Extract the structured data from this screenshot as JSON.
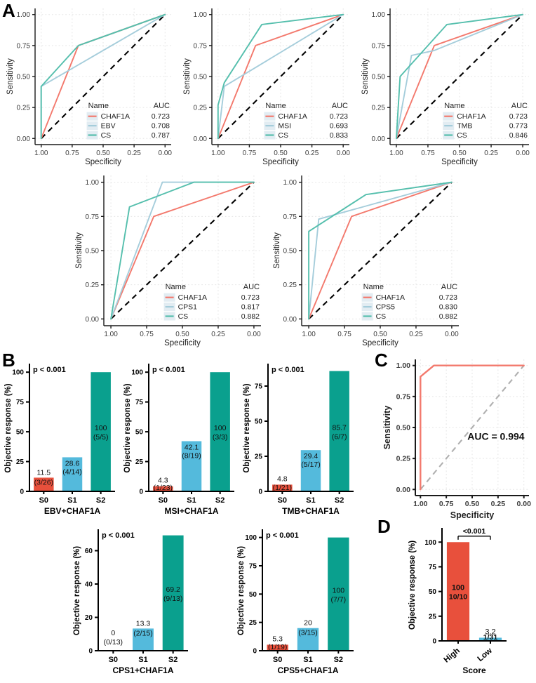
{
  "panels": {
    "a": "A",
    "b": "B",
    "c": "C",
    "d": "D"
  },
  "colors": {
    "roc_chaf1a": "#F3796D",
    "roc_blue": "#A5CDDB",
    "roc_teal": "#55BFAD",
    "legend_key_bg": "#E2ECF2",
    "diagonal_black": "#000000",
    "diagonal_gray": "#B0B0B0",
    "grid": "#E5E5E5",
    "bar_red": "#E8503C",
    "bar_blue": "#54BADC",
    "bar_teal": "#0AA08E",
    "axis_line": "#1A1A1A",
    "axis_text": "#3D3D3D",
    "label_text": "#111111"
  },
  "chart_data": [
    {
      "id": "roc-chaf1a-ebv",
      "type": "line",
      "panel": "A",
      "xlabel": "Specificity",
      "ylabel": "Sensitivity",
      "x_ticks": [
        "1.00",
        "0.75",
        "0.50",
        "0.25",
        "0.00"
      ],
      "y_ticks": [
        "0.00",
        "0.25",
        "0.50",
        "0.75",
        "1.00"
      ],
      "x_reversed": true,
      "diagonal": true,
      "grid": true,
      "legend": {
        "headers": [
          "Name",
          "AUC"
        ],
        "entries": [
          {
            "name": "CHAF1A",
            "auc": "0.723",
            "color": "#F3796D"
          },
          {
            "name": "EBV",
            "auc": "0.708",
            "color": "#A5CDDB"
          },
          {
            "name": "CS",
            "auc": "0.787",
            "color": "#55BFAD"
          }
        ]
      },
      "series": [
        {
          "name": "CHAF1A",
          "color": "#F3796D",
          "points": [
            [
              1,
              0
            ],
            [
              0.7,
              0.75
            ],
            [
              0,
              1
            ]
          ]
        },
        {
          "name": "EBV",
          "color": "#A5CDDB",
          "points": [
            [
              1,
              0
            ],
            [
              1,
              0.42
            ],
            [
              0,
              1
            ]
          ]
        },
        {
          "name": "CS",
          "color": "#55BFAD",
          "points": [
            [
              1,
              0
            ],
            [
              1,
              0.42
            ],
            [
              0.7,
              0.75
            ],
            [
              0,
              1
            ]
          ]
        }
      ]
    },
    {
      "id": "roc-chaf1a-msi",
      "type": "line",
      "panel": "A",
      "xlabel": "Specificity",
      "ylabel": "Sensitivity",
      "x_ticks": [
        "1.00",
        "0.75",
        "0.50",
        "0.25",
        "0.00"
      ],
      "y_ticks": [
        "0.00",
        "0.25",
        "0.50",
        "0.75",
        "1.00"
      ],
      "x_reversed": true,
      "diagonal": true,
      "grid": true,
      "legend": {
        "headers": [
          "Name",
          "AUC"
        ],
        "entries": [
          {
            "name": "CHAF1A",
            "auc": "0.723",
            "color": "#F3796D"
          },
          {
            "name": "MSI",
            "auc": "0.693",
            "color": "#A5CDDB"
          },
          {
            "name": "CS",
            "auc": "0.833",
            "color": "#55BFAD"
          }
        ]
      },
      "series": [
        {
          "name": "CHAF1A",
          "color": "#F3796D",
          "points": [
            [
              1,
              0
            ],
            [
              0.7,
              0.75
            ],
            [
              0,
              1
            ]
          ]
        },
        {
          "name": "MSI",
          "color": "#A5CDDB",
          "points": [
            [
              1,
              0
            ],
            [
              0.95,
              0.42
            ],
            [
              0,
              1
            ]
          ]
        },
        {
          "name": "CS",
          "color": "#55BFAD",
          "points": [
            [
              1,
              0
            ],
            [
              1,
              0.27
            ],
            [
              0.95,
              0.45
            ],
            [
              0.65,
              0.92
            ],
            [
              0,
              1
            ]
          ]
        }
      ]
    },
    {
      "id": "roc-chaf1a-tmb",
      "type": "line",
      "panel": "A",
      "xlabel": "Specificity",
      "ylabel": "Sensitivity",
      "x_ticks": [
        "1.00",
        "0.75",
        "0.50",
        "0.25",
        "0.00"
      ],
      "y_ticks": [
        "0.00",
        "0.25",
        "0.50",
        "0.75",
        "1.00"
      ],
      "x_reversed": true,
      "diagonal": true,
      "grid": true,
      "legend": {
        "headers": [
          "Name",
          "AUC"
        ],
        "entries": [
          {
            "name": "CHAF1A",
            "auc": "0.723",
            "color": "#F3796D"
          },
          {
            "name": "TMB",
            "auc": "0.773",
            "color": "#A5CDDB"
          },
          {
            "name": "CS",
            "auc": "0.846",
            "color": "#55BFAD"
          }
        ]
      },
      "series": [
        {
          "name": "CHAF1A",
          "color": "#F3796D",
          "points": [
            [
              1,
              0
            ],
            [
              0.7,
              0.75
            ],
            [
              0,
              1
            ]
          ]
        },
        {
          "name": "TMB",
          "color": "#A5CDDB",
          "points": [
            [
              1,
              0
            ],
            [
              0.88,
              0.67
            ],
            [
              0.7,
              0.71
            ],
            [
              0,
              1
            ]
          ]
        },
        {
          "name": "CS",
          "color": "#55BFAD",
          "points": [
            [
              1,
              0
            ],
            [
              0.97,
              0.5
            ],
            [
              0.6,
              0.92
            ],
            [
              0,
              1
            ]
          ]
        }
      ]
    },
    {
      "id": "roc-chaf1a-cps1",
      "type": "line",
      "panel": "A",
      "xlabel": "Specificity",
      "ylabel": "Sensitivity",
      "x_ticks": [
        "1.00",
        "0.75",
        "0.50",
        "0.25",
        "0.00"
      ],
      "y_ticks": [
        "0.00",
        "0.25",
        "0.50",
        "0.75",
        "1.00"
      ],
      "x_reversed": true,
      "diagonal": true,
      "grid": true,
      "legend": {
        "headers": [
          "Name",
          "AUC"
        ],
        "entries": [
          {
            "name": "CHAF1A",
            "auc": "0.723",
            "color": "#F3796D"
          },
          {
            "name": "CPS1",
            "auc": "0.817",
            "color": "#A5CDDB"
          },
          {
            "name": "CS",
            "auc": "0.882",
            "color": "#55BFAD"
          }
        ]
      },
      "series": [
        {
          "name": "CHAF1A",
          "color": "#F3796D",
          "points": [
            [
              1,
              0
            ],
            [
              0.7,
              0.75
            ],
            [
              0,
              1
            ]
          ]
        },
        {
          "name": "CPS1",
          "color": "#A5CDDB",
          "points": [
            [
              1,
              0
            ],
            [
              0.64,
              1
            ],
            [
              0,
              1
            ]
          ]
        },
        {
          "name": "CS",
          "color": "#55BFAD",
          "points": [
            [
              1,
              0
            ],
            [
              0.87,
              0.82
            ],
            [
              0.42,
              1
            ],
            [
              0,
              1
            ]
          ]
        }
      ]
    },
    {
      "id": "roc-chaf1a-cps5",
      "type": "line",
      "panel": "A",
      "xlabel": "Specificity",
      "ylabel": "Sensitivity",
      "x_ticks": [
        "1.00",
        "0.75",
        "0.50",
        "0.25",
        "0.00"
      ],
      "y_ticks": [
        "0.00",
        "0.25",
        "0.50",
        "0.75",
        "1.00"
      ],
      "x_reversed": true,
      "diagonal": true,
      "grid": true,
      "legend": {
        "headers": [
          "Name",
          "AUC"
        ],
        "entries": [
          {
            "name": "CHAF1A",
            "auc": "0.723",
            "color": "#F3796D"
          },
          {
            "name": "CPS5",
            "auc": "0.830",
            "color": "#A5CDDB"
          },
          {
            "name": "CS",
            "auc": "0.882",
            "color": "#55BFAD"
          }
        ]
      },
      "series": [
        {
          "name": "CHAF1A",
          "color": "#F3796D",
          "points": [
            [
              1,
              0
            ],
            [
              0.7,
              0.75
            ],
            [
              0,
              1
            ]
          ]
        },
        {
          "name": "CPS5",
          "color": "#A5CDDB",
          "points": [
            [
              1,
              0
            ],
            [
              0.93,
              0.73
            ],
            [
              0,
              1
            ]
          ]
        },
        {
          "name": "CS",
          "color": "#55BFAD",
          "points": [
            [
              1,
              0
            ],
            [
              1,
              0.64
            ],
            [
              0.6,
              0.91
            ],
            [
              0,
              1
            ]
          ]
        }
      ]
    },
    {
      "id": "roc-signature",
      "type": "line",
      "panel": "C",
      "style": "bold",
      "xlabel": "Specificity",
      "ylabel": "Sensitivity",
      "x_ticks": [
        "1.00",
        "0.75",
        "0.50",
        "0.25",
        "0.00"
      ],
      "y_ticks": [
        "0.00",
        "0.25",
        "0.50",
        "0.75",
        "1.00"
      ],
      "x_reversed": true,
      "diagonal": true,
      "diagonal_color": "#B0B0B0",
      "grid": true,
      "annotation": "AUC = 0.994",
      "series": [
        {
          "name": "signature",
          "color": "#F3796D",
          "points": [
            [
              1,
              0
            ],
            [
              1,
              0.91
            ],
            [
              0.87,
              1
            ],
            [
              0,
              1
            ]
          ]
        }
      ]
    },
    {
      "id": "bar-ebv-chaf1a",
      "type": "bar",
      "panel": "B",
      "p_value": "p < 0.001",
      "ylabel": "Objective response (%)",
      "xlabel": "EBV+CHAF1A",
      "categories": [
        "S0",
        "S1",
        "S2"
      ],
      "values": [
        11.5,
        28.6,
        100
      ],
      "value_labels": [
        "11.5",
        "28.6",
        "100"
      ],
      "fractions": [
        "(3/26)",
        "(4/14)",
        "(5/5)"
      ],
      "colors": [
        "#E8503C",
        "#54BADC",
        "#0AA08E"
      ],
      "y_ticks": [
        0,
        25,
        50,
        75,
        100
      ],
      "ymax": 106
    },
    {
      "id": "bar-msi-chaf1a",
      "type": "bar",
      "panel": "B",
      "p_value": "p < 0.001",
      "ylabel": "Objective response (%)",
      "xlabel": "MSI+CHAF1A",
      "categories": [
        "S0",
        "S1",
        "S2"
      ],
      "values": [
        4.3,
        42.1,
        100
      ],
      "value_labels": [
        "4.3",
        "42.1",
        "100"
      ],
      "fractions": [
        "(1/23)",
        "(8/19)",
        "(3/3)"
      ],
      "colors": [
        "#E8503C",
        "#54BADC",
        "#0AA08E"
      ],
      "y_ticks": [
        0,
        25,
        50,
        75,
        100
      ],
      "ymax": 106
    },
    {
      "id": "bar-tmb-chaf1a",
      "type": "bar",
      "panel": "B",
      "p_value": "p < 0.001",
      "ylabel": "Objective response (%)",
      "xlabel": "TMB+CHAF1A",
      "categories": [
        "S0",
        "S1",
        "S2"
      ],
      "values": [
        4.8,
        29.4,
        85.7
      ],
      "value_labels": [
        "4.8",
        "29.4",
        "85.7"
      ],
      "fractions": [
        "(1/21)",
        "(5/17)",
        "(6/7)"
      ],
      "colors": [
        "#E8503C",
        "#54BADC",
        "#0AA08E"
      ],
      "y_ticks": [
        0,
        25,
        50,
        75
      ],
      "ymax": 90
    },
    {
      "id": "bar-cps1-chaf1a",
      "type": "bar",
      "panel": "B",
      "p_value": "p < 0.001",
      "ylabel": "Objective response (%)",
      "xlabel": "CPS1+CHAF1A",
      "categories": [
        "S0",
        "S1",
        "S2"
      ],
      "values": [
        0,
        13.3,
        69.2
      ],
      "value_labels": [
        "0",
        "13.3",
        "69.2"
      ],
      "fractions": [
        "(0/13)",
        "(2/15)",
        "(9/13)"
      ],
      "colors": [
        "#E8503C",
        "#54BADC",
        "#0AA08E"
      ],
      "y_ticks": [
        0,
        20,
        40,
        60
      ],
      "ymax": 72
    },
    {
      "id": "bar-cps5-chaf1a",
      "type": "bar",
      "panel": "B",
      "p_value": "p < 0.001",
      "ylabel": "Objective response (%)",
      "xlabel": "CPS5+CHAF1A",
      "categories": [
        "S0",
        "S1",
        "S2"
      ],
      "values": [
        5.3,
        20,
        100
      ],
      "value_labels": [
        "5.3",
        "20",
        "100"
      ],
      "fractions": [
        "(1/19)",
        "(3/15)",
        "(7/7)"
      ],
      "colors": [
        "#E8503C",
        "#54BADC",
        "#0AA08E"
      ],
      "y_ticks": [
        0,
        25,
        50,
        75,
        100
      ],
      "ymax": 106
    },
    {
      "id": "bar-score",
      "type": "bar",
      "panel": "D",
      "label_style": "mixed",
      "significance": "<0.001",
      "sig_y": 106,
      "ylabel": "Objective response (%)",
      "xlabel": "Score",
      "categories": [
        "High",
        "Low"
      ],
      "rotate_x": true,
      "values": [
        100,
        3.2
      ],
      "value_labels": [
        "100",
        "3.2"
      ],
      "fractions": [
        "10/10",
        "1/31"
      ],
      "colors": [
        "#E8503C",
        "#54BADC"
      ],
      "y_ticks": [
        0,
        25,
        50,
        75,
        100
      ],
      "ymax": 113
    }
  ]
}
